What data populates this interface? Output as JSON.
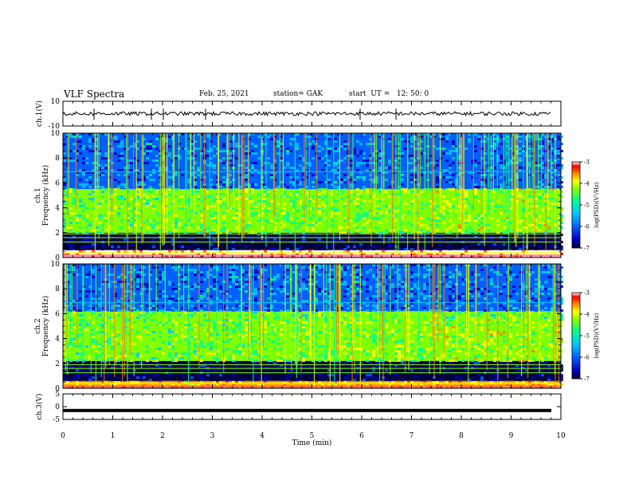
{
  "header": {
    "title": "VLF Spectra",
    "date": "Feb. 25, 2021",
    "station": "station= GAK",
    "start_ut": "start  UT =   12: 50: 0"
  },
  "colors": {
    "spectrogram_scale": [
      "#000040",
      "#0000c0",
      "#0060ff",
      "#00c8ff",
      "#00ff90",
      "#80ff00",
      "#ffff00",
      "#ff8000",
      "#ff0000",
      "#ffffff"
    ],
    "waveform": "#000000"
  },
  "chart_data": [
    {
      "type": "line",
      "name": "ch1-waveform",
      "ylabel": "ch.1(V)",
      "ylim": [
        -10,
        10
      ],
      "yticks": [
        "10",
        "-10"
      ],
      "xlim": [
        0,
        10
      ],
      "description_values": {
        "mean": 0,
        "amplitude_v": 1.5
      }
    },
    {
      "type": "heatmap",
      "name": "ch1-spectrogram",
      "ylabel_lines": [
        "ch.1",
        "Frequency  (kHz)"
      ],
      "ylim": [
        0,
        10
      ],
      "yticks": [
        "0",
        "2",
        "4",
        "6",
        "8",
        "10"
      ],
      "xlim": [
        0,
        10
      ],
      "colorbar": {
        "label": "log(PSD)(V²/Hz)",
        "range": [
          -7,
          -3
        ],
        "ticks": [
          "-3",
          "-4",
          "-5",
          "-6",
          "-7"
        ]
      },
      "bands_khz": [
        {
          "from": 0,
          "to": 0.6,
          "level": -3.2
        },
        {
          "from": 0.6,
          "to": 2.0,
          "level": -6.8
        },
        {
          "from": 2.0,
          "to": 5.5,
          "level": -5.0
        },
        {
          "from": 5.5,
          "to": 10,
          "level": -6.0
        }
      ]
    },
    {
      "type": "heatmap",
      "name": "ch2-spectrogram",
      "ylabel_lines": [
        "ch.2",
        "Frequency  (kHz)"
      ],
      "ylim": [
        0,
        10
      ],
      "yticks": [
        "0",
        "2",
        "4",
        "6",
        "8",
        "10"
      ],
      "xlim": [
        0,
        10
      ],
      "colorbar": {
        "label": "log(PSD)(V²/Hz)",
        "range": [
          -7,
          -3
        ],
        "ticks": [
          "-3",
          "-4",
          "-5",
          "-6",
          "-7"
        ]
      },
      "bands_khz": [
        {
          "from": 0,
          "to": 0.6,
          "level": -4.0
        },
        {
          "from": 0.6,
          "to": 2.2,
          "level": -6.8
        },
        {
          "from": 2.2,
          "to": 6.2,
          "level": -5.0
        },
        {
          "from": 6.2,
          "to": 10,
          "level": -6.0
        }
      ]
    },
    {
      "type": "line",
      "name": "ch3-waveform",
      "ylabel": "ch.3(V)",
      "ylim": [
        -5,
        5
      ],
      "yticks": [
        "5",
        "0",
        "-5"
      ],
      "xlim": [
        0,
        10
      ],
      "constant_value_v": -1.5
    }
  ],
  "xaxis": {
    "label": "Time  (min)",
    "ticks": [
      "0",
      "1",
      "2",
      "3",
      "4",
      "5",
      "6",
      "7",
      "8",
      "9",
      "10"
    ]
  }
}
